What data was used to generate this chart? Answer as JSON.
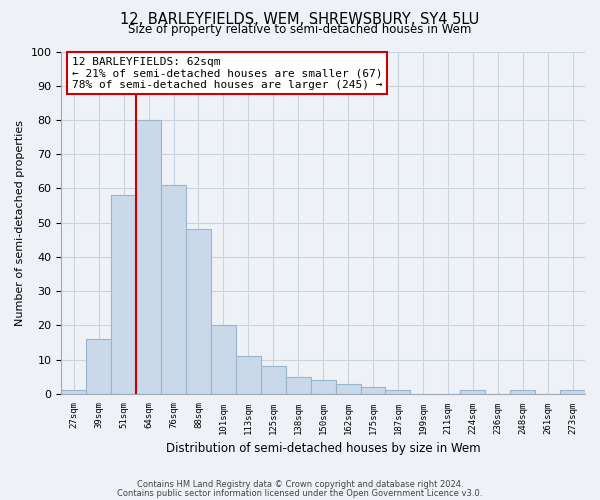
{
  "title1": "12, BARLEYFIELDS, WEM, SHREWSBURY, SY4 5LU",
  "title2": "Size of property relative to semi-detached houses in Wem",
  "xlabel": "Distribution of semi-detached houses by size in Wem",
  "ylabel": "Number of semi-detached properties",
  "footnote1": "Contains HM Land Registry data © Crown copyright and database right 2024.",
  "footnote2": "Contains public sector information licensed under the Open Government Licence v3.0.",
  "bar_labels": [
    "27sqm",
    "39sqm",
    "51sqm",
    "64sqm",
    "76sqm",
    "88sqm",
    "101sqm",
    "113sqm",
    "125sqm",
    "138sqm",
    "150sqm",
    "162sqm",
    "175sqm",
    "187sqm",
    "199sqm",
    "211sqm",
    "224sqm",
    "236sqm",
    "248sqm",
    "261sqm",
    "273sqm"
  ],
  "bar_values": [
    1,
    16,
    58,
    80,
    61,
    48,
    20,
    11,
    8,
    5,
    4,
    3,
    2,
    1,
    0,
    0,
    1,
    0,
    1,
    0,
    1
  ],
  "bar_color": "#c9d9ea",
  "bar_edge_color": "#9ab4cc",
  "pct_smaller": 21,
  "count_smaller": 67,
  "pct_larger": 78,
  "count_larger": 245,
  "vline_color": "#cc0000",
  "annotation_box_edge": "#cc0000",
  "ylim": [
    0,
    100
  ],
  "yticks": [
    0,
    10,
    20,
    30,
    40,
    50,
    60,
    70,
    80,
    90,
    100
  ],
  "grid_color": "#c8d4e0",
  "background_color": "#eef2f7"
}
